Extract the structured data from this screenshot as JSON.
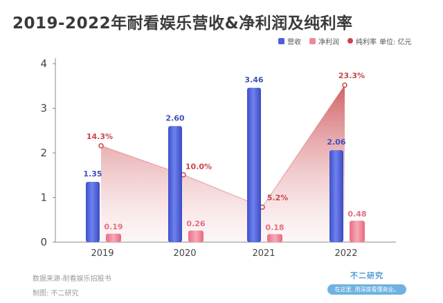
{
  "title": "2019-2022年耐看娱乐营收&净利润及纯利率",
  "legend": {
    "revenue": "营收",
    "net_profit": "净利润",
    "margin": "纯利率",
    "unit": "单位: 亿元"
  },
  "footer": {
    "source": "数据来源-耐看娱乐招股书",
    "maker": "制图: 不二研究"
  },
  "brand": {
    "name": "不二研究",
    "tagline": "在这里, 用深度看懂商业。"
  },
  "colors": {
    "revenue": "#4d5fd6",
    "net_profit": "#f0879a",
    "margin": "#c9454a",
    "title": "#3a3a3a"
  },
  "chart_data": {
    "type": "bar",
    "categories": [
      "2019",
      "2020",
      "2021",
      "2022"
    ],
    "series": [
      {
        "name": "营收",
        "values": [
          1.35,
          2.6,
          3.46,
          2.06
        ],
        "labels": [
          "1.35",
          "2.60",
          "3.46",
          "2.06"
        ]
      },
      {
        "name": "净利润",
        "values": [
          0.19,
          0.26,
          0.18,
          0.48
        ],
        "labels": [
          "0.19",
          "0.26",
          "0.18",
          "0.48"
        ]
      }
    ],
    "line_series": {
      "name": "纯利率",
      "type": "area",
      "values": [
        14.3,
        10.0,
        5.2,
        23.3
      ],
      "labels": [
        "14.3%",
        "10.0%",
        "5.2%",
        "23.3%"
      ]
    },
    "y_ticks": [
      "0",
      "1",
      "2",
      "3",
      "4"
    ],
    "ylim": [
      0,
      4
    ],
    "grid": false
  }
}
